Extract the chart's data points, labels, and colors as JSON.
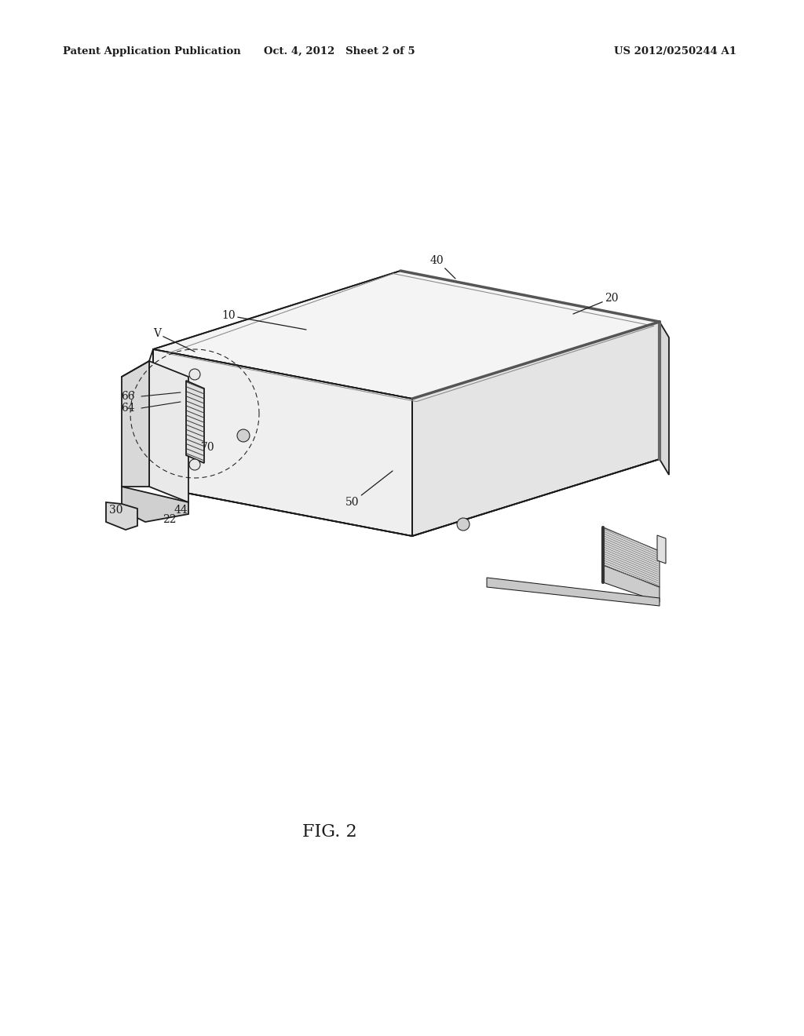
{
  "bg_color": "#ffffff",
  "lc": "#1c1c1c",
  "header_left": "Patent Application Publication",
  "header_mid": "Oct. 4, 2012   Sheet 2 of 5",
  "header_right": "US 2012/0250244 A1",
  "fig_label": "FIG. 2",
  "lw_main": 1.3,
  "lw_thin": 0.75,
  "lw_thick": 2.2,
  "lw_heavy": 3.0,
  "top_face_color": "#f4f4f4",
  "front_face_color": "#efefef",
  "right_face_color": "#e4e4e4",
  "side_dark": "#c8c8c8",
  "bracket_face_color": "#e9e9e9",
  "connector_color": "#d5d5d5",
  "hatch_color": "#3a3a3a",
  "shadow_color": "#b0b0b0",
  "label_fs": 10,
  "header_fs": 9.5,
  "fig_fs": 16
}
